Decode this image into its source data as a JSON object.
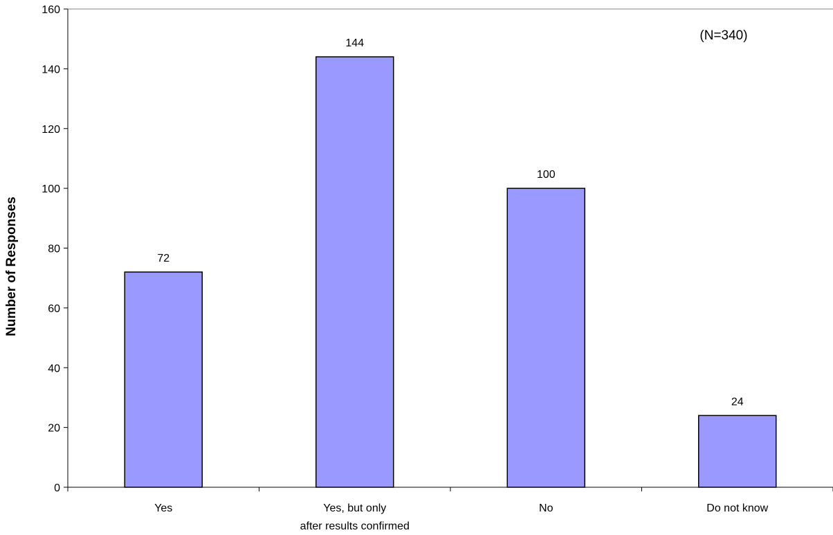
{
  "chart_data": {
    "type": "bar",
    "title": "",
    "xlabel": "",
    "ylabel": "Number of Responses",
    "annotation": "(N=340)",
    "categories": [
      [
        "Yes"
      ],
      [
        "Yes, but only",
        "after results confirmed"
      ],
      [
        "No"
      ],
      [
        "Do not know"
      ]
    ],
    "values": [
      72,
      144,
      100,
      24
    ],
    "data_labels": [
      "72",
      "144",
      "100",
      "24"
    ],
    "ylim": [
      0,
      160
    ],
    "yticks": [
      0,
      20,
      40,
      60,
      80,
      100,
      120,
      140,
      160
    ],
    "grid": false,
    "legend": "none",
    "colors": {
      "bar_fill": "#9999ff",
      "bar_stroke": "#000000",
      "axis": "#000000"
    }
  }
}
